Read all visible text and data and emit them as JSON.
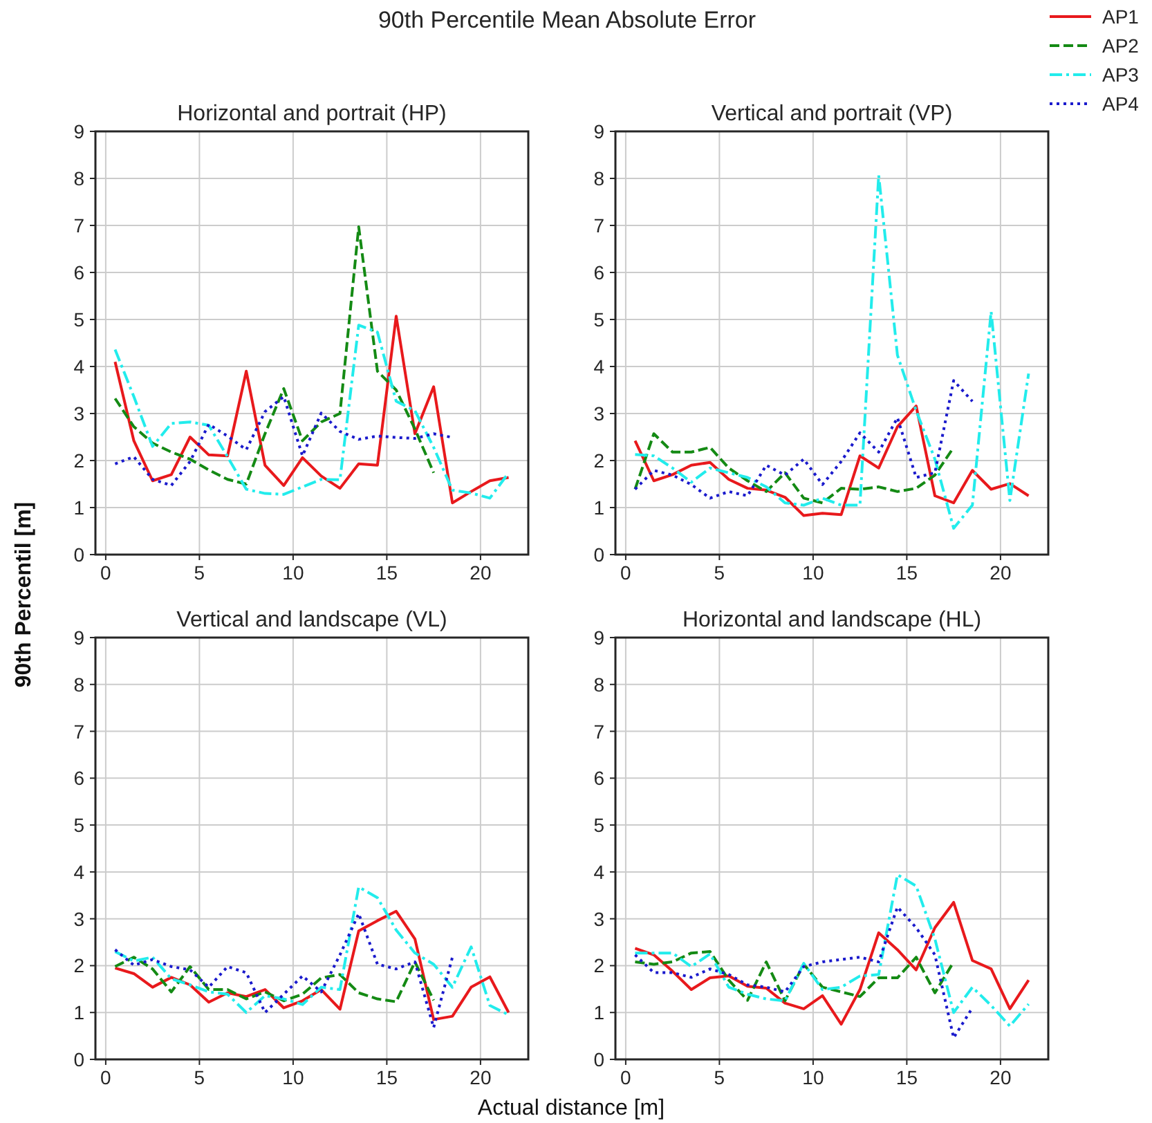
{
  "chart_data": [
    {
      "type": "line",
      "title": "Horizontal and portrait (HP)",
      "annotations": [
        "90th Percentile Mean Absolute Error"
      ],
      "xlabel": "Actual distance [m]",
      "ylabel": "90th Percentil [m]",
      "legend": "top right",
      "grid": true,
      "xlim": [
        -0.55,
        22.55
      ],
      "ylim": [
        0,
        9
      ],
      "xticks": [
        0,
        5,
        10,
        15,
        20
      ],
      "yticks": [
        0,
        1,
        2,
        3,
        4,
        5,
        6,
        7,
        8,
        9
      ],
      "x": [
        0.5,
        1.5,
        2.5,
        3.5,
        4.5,
        5.5,
        6.5,
        7.5,
        8.5,
        9.5,
        10.5,
        11.5,
        12.5,
        13.5,
        14.5,
        15.5,
        16.5,
        17.5,
        18.5,
        19.5,
        20.5,
        21.5
      ],
      "series": [
        {
          "name": "AP1",
          "color": "#e8191c",
          "line_style": "solid",
          "values": [
            4.1,
            2.42,
            1.57,
            1.7,
            2.5,
            2.12,
            2.1,
            3.9,
            1.9,
            1.47,
            2.06,
            1.67,
            1.41,
            1.93,
            1.9,
            5.07,
            2.57,
            3.57,
            1.1,
            1.34,
            1.57,
            1.64
          ]
        },
        {
          "name": "AP2",
          "color": "#148a14",
          "line_style": "dashed",
          "values": [
            3.32,
            2.72,
            2.37,
            2.18,
            2.03,
            1.8,
            1.6,
            1.5,
            2.57,
            3.53,
            2.42,
            2.82,
            3.0,
            6.97,
            3.9,
            3.5,
            2.67,
            1.74,
            null,
            null,
            null,
            null
          ]
        },
        {
          "name": "AP3",
          "color": "#22ecec",
          "line_style": "dashdot",
          "values": [
            4.36,
            3.36,
            2.3,
            2.79,
            2.82,
            2.75,
            2.08,
            1.39,
            1.3,
            1.28,
            1.44,
            1.6,
            1.59,
            4.88,
            4.73,
            3.26,
            3.06,
            2.28,
            1.37,
            1.31,
            1.2,
            1.74
          ]
        },
        {
          "name": "AP4",
          "color": "#1a1acc",
          "line_style": "dotted",
          "values": [
            1.93,
            2.08,
            1.6,
            1.47,
            1.98,
            2.77,
            2.52,
            2.23,
            3.04,
            3.36,
            2.1,
            3.01,
            2.62,
            2.45,
            2.52,
            2.49,
            2.47,
            2.57,
            2.49,
            null,
            null,
            null
          ]
        }
      ]
    },
    {
      "type": "line",
      "title": "Vertical and portrait (VP)",
      "grid": true,
      "xlim": [
        -0.55,
        22.55
      ],
      "ylim": [
        0,
        9
      ],
      "xticks": [
        0,
        5,
        10,
        15,
        20
      ],
      "yticks": [
        0,
        1,
        2,
        3,
        4,
        5,
        6,
        7,
        8,
        9
      ],
      "x": [
        0.5,
        1.5,
        2.5,
        3.5,
        4.5,
        5.5,
        6.5,
        7.5,
        8.5,
        9.5,
        10.5,
        11.5,
        12.5,
        13.5,
        14.5,
        15.5,
        16.5,
        17.5,
        18.5,
        19.5,
        20.5,
        21.5
      ],
      "series": [
        {
          "color": "#e8191c",
          "line_style": "solid",
          "values": [
            2.42,
            1.57,
            1.7,
            1.9,
            1.96,
            1.6,
            1.41,
            1.37,
            1.22,
            0.83,
            0.88,
            0.85,
            2.1,
            1.84,
            2.72,
            3.16,
            1.25,
            1.1,
            1.79,
            1.39,
            1.51,
            1.25
          ]
        },
        {
          "color": "#148a14",
          "line_style": "dashed",
          "values": [
            1.39,
            2.57,
            2.18,
            2.18,
            2.28,
            1.84,
            1.57,
            1.34,
            1.74,
            1.2,
            1.1,
            1.41,
            1.39,
            1.44,
            1.34,
            1.41,
            1.69,
            2.28,
            null,
            null,
            null,
            null
          ]
        },
        {
          "color": "#22ecec",
          "line_style": "dashdot",
          "values": [
            2.13,
            2.1,
            1.84,
            1.54,
            1.84,
            1.74,
            1.64,
            1.44,
            1.1,
            1.05,
            1.2,
            1.05,
            1.05,
            8.07,
            4.24,
            3.06,
            2.03,
            0.56,
            1.05,
            5.17,
            1.15,
            3.85
          ]
        },
        {
          "color": "#1a1acc",
          "line_style": "dotted",
          "values": [
            1.39,
            1.79,
            1.69,
            1.49,
            1.2,
            1.34,
            1.25,
            1.9,
            1.69,
            2.03,
            1.49,
            1.98,
            2.59,
            2.18,
            2.91,
            1.64,
            1.74,
            3.7,
            3.26,
            null,
            null,
            null
          ]
        }
      ]
    },
    {
      "type": "line",
      "title": "Vertical and landscape (VL)",
      "grid": true,
      "xlim": [
        -0.55,
        22.55
      ],
      "ylim": [
        0,
        9
      ],
      "xticks": [
        0,
        5,
        10,
        15,
        20
      ],
      "yticks": [
        0,
        1,
        2,
        3,
        4,
        5,
        6,
        7,
        8,
        9
      ],
      "x": [
        0.5,
        1.5,
        2.5,
        3.5,
        4.5,
        5.5,
        6.5,
        7.5,
        8.5,
        9.5,
        10.5,
        11.5,
        12.5,
        13.5,
        14.5,
        15.5,
        16.5,
        17.5,
        18.5,
        19.5,
        20.5,
        21.5
      ],
      "series": [
        {
          "color": "#e8191c",
          "line_style": "solid",
          "values": [
            1.95,
            1.83,
            1.54,
            1.75,
            1.59,
            1.22,
            1.42,
            1.34,
            1.49,
            1.1,
            1.25,
            1.49,
            1.07,
            2.74,
            2.96,
            3.16,
            2.57,
            0.85,
            0.92,
            1.54,
            1.76,
            1.0
          ]
        },
        {
          "color": "#148a14",
          "line_style": "dashed",
          "values": [
            1.98,
            2.18,
            1.93,
            1.44,
            1.98,
            1.49,
            1.49,
            1.29,
            1.44,
            1.25,
            1.39,
            1.74,
            1.81,
            1.42,
            1.29,
            1.23,
            2.08,
            1.26,
            null,
            null,
            null,
            null
          ]
        },
        {
          "color": "#22ecec",
          "line_style": "dashdot",
          "values": [
            2.3,
            2.1,
            2.18,
            1.72,
            1.59,
            1.44,
            1.39,
            1.0,
            1.36,
            1.29,
            1.17,
            1.54,
            1.49,
            3.68,
            3.45,
            2.76,
            2.27,
            2.03,
            1.54,
            2.4,
            1.15,
            0.95
          ]
        },
        {
          "color": "#1a1acc",
          "line_style": "dotted",
          "values": [
            2.34,
            2.01,
            2.13,
            1.98,
            1.91,
            1.54,
            1.98,
            1.85,
            1.0,
            1.39,
            1.78,
            1.44,
            2.23,
            3.11,
            2.03,
            1.93,
            2.08,
            0.68,
            2.18,
            null,
            null,
            null
          ]
        }
      ]
    },
    {
      "type": "line",
      "title": "Horizontal and landscape (HL)",
      "grid": true,
      "xlim": [
        -0.55,
        22.55
      ],
      "ylim": [
        0,
        9
      ],
      "xticks": [
        0,
        5,
        10,
        15,
        20
      ],
      "yticks": [
        0,
        1,
        2,
        3,
        4,
        5,
        6,
        7,
        8,
        9
      ],
      "x": [
        0.5,
        1.5,
        2.5,
        3.5,
        4.5,
        5.5,
        6.5,
        7.5,
        8.5,
        9.5,
        10.5,
        11.5,
        12.5,
        13.5,
        14.5,
        15.5,
        16.5,
        17.5,
        18.5,
        19.5,
        20.5,
        21.5
      ],
      "series": [
        {
          "color": "#e8191c",
          "line_style": "solid",
          "values": [
            2.37,
            2.23,
            1.88,
            1.49,
            1.74,
            1.78,
            1.56,
            1.52,
            1.2,
            1.08,
            1.36,
            0.75,
            1.49,
            2.7,
            2.34,
            1.91,
            2.81,
            3.35,
            2.11,
            1.93,
            1.08,
            1.69
          ]
        },
        {
          "color": "#148a14",
          "line_style": "dashed",
          "values": [
            2.08,
            2.03,
            2.08,
            2.27,
            2.3,
            1.69,
            1.26,
            2.08,
            1.25,
            2.03,
            1.54,
            1.44,
            1.34,
            1.74,
            1.74,
            2.18,
            1.42,
            2.08,
            null,
            null,
            null,
            null
          ]
        },
        {
          "color": "#22ecec",
          "line_style": "dashdot",
          "values": [
            2.27,
            2.27,
            2.27,
            1.98,
            2.25,
            1.54,
            1.39,
            1.29,
            1.25,
            2.05,
            1.49,
            1.54,
            1.78,
            1.81,
            3.94,
            3.7,
            2.57,
            1.0,
            1.54,
            1.15,
            0.71,
            1.18
          ]
        },
        {
          "color": "#1a1acc",
          "line_style": "dotted",
          "values": [
            2.23,
            1.85,
            1.85,
            1.75,
            1.93,
            1.81,
            1.59,
            1.54,
            1.44,
            1.98,
            2.08,
            2.13,
            2.18,
            2.08,
            3.25,
            2.81,
            2.23,
            0.46,
            1.1,
            null,
            null,
            null
          ]
        }
      ]
    }
  ]
}
